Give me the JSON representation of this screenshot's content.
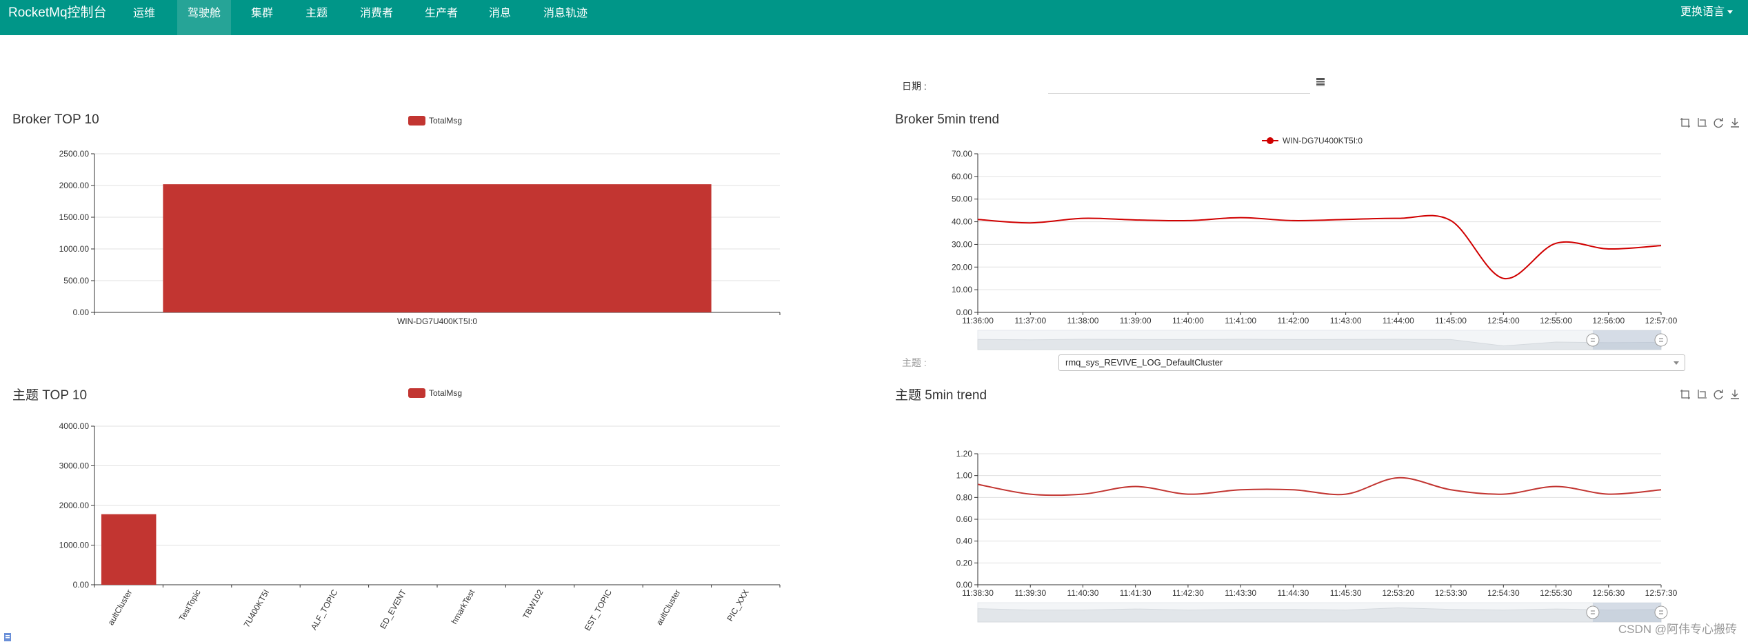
{
  "navbar": {
    "brand": "RocketMq控制台",
    "items": [
      {
        "label": "运维",
        "active": false
      },
      {
        "label": "驾驶舱",
        "active": true
      },
      {
        "label": "集群",
        "active": false
      },
      {
        "label": "主题",
        "active": false
      },
      {
        "label": "消费者",
        "active": false
      },
      {
        "label": "生产者",
        "active": false
      },
      {
        "label": "消息",
        "active": false
      },
      {
        "label": "消息轨迹",
        "active": false
      }
    ],
    "language": "更换语言"
  },
  "colors": {
    "navbar": "#009688",
    "bar": "#c23531",
    "line": "#d00000",
    "lineTopic": "#c23531"
  },
  "date_filter": {
    "label": "日期 :",
    "value": "",
    "icon": "calendar-icon"
  },
  "topic_filter": {
    "label": "主题 :",
    "selected": "rmq_sys_REVIVE_LOG_DefaultCluster"
  },
  "panels": {
    "broker_top": {
      "title": "Broker TOP 10"
    },
    "broker_trend": {
      "title": "Broker 5min trend"
    },
    "topic_top": {
      "title": "主题 TOP 10"
    },
    "topic_trend": {
      "title": "主题 5min trend"
    }
  },
  "toolbox_icons": [
    "zoom-icon",
    "zoom-reset-icon",
    "restore-icon",
    "download-icon"
  ],
  "watermark": "CSDN @阿伟专心搬砖",
  "chart_data": [
    {
      "id": "broker_top",
      "type": "bar",
      "legend": [
        "TotalMsg"
      ],
      "categories": [
        "WIN-DG7U400KT5I:0"
      ],
      "series": [
        {
          "name": "TotalMsg",
          "values": [
            2020
          ]
        }
      ],
      "ylim": [
        0,
        2500
      ],
      "yticks": [
        "0.00",
        "500.00",
        "1000.00",
        "1500.00",
        "2000.00",
        "2500.00"
      ],
      "grid": true,
      "legend_position": "top-center"
    },
    {
      "id": "broker_trend",
      "type": "line",
      "legend": [
        "WIN-DG7U400KT5I:0"
      ],
      "x": [
        "11:36:00",
        "11:37:00",
        "11:38:00",
        "11:39:00",
        "11:40:00",
        "11:41:00",
        "11:42:00",
        "11:43:00",
        "11:44:00",
        "11:45:00",
        "12:54:00",
        "12:55:00",
        "12:56:00",
        "12:57:00"
      ],
      "series": [
        {
          "name": "WIN-DG7U400KT5I:0",
          "values": [
            41,
            39.5,
            41.5,
            40.8,
            40.5,
            41.8,
            40.5,
            41,
            41.5,
            40.5,
            15,
            30.5,
            28,
            29.5
          ]
        }
      ],
      "ylim": [
        0,
        70
      ],
      "yticks": [
        "0.00",
        "10.00",
        "20.00",
        "30.00",
        "40.00",
        "50.00",
        "60.00",
        "70.00"
      ],
      "grid": true,
      "legend_position": "top-center",
      "datazoom": {
        "start_percent": 90,
        "end_percent": 100
      }
    },
    {
      "id": "topic_top",
      "type": "bar",
      "legend": [
        "TotalMsg"
      ],
      "categories": [
        "aultCluster",
        "TestTopic",
        "7U400KT5I",
        "ALF_TOPIC",
        "ED_EVENT",
        "hmarkTest",
        "TBW102",
        "EST_TOPIC",
        "aultCluster",
        "PIC_XXX"
      ],
      "series": [
        {
          "name": "TotalMsg",
          "values": [
            1780,
            0,
            0,
            0,
            0,
            0,
            0,
            0,
            0,
            0
          ]
        }
      ],
      "ylim": [
        0,
        4000
      ],
      "yticks": [
        "0.00",
        "1000.00",
        "2000.00",
        "3000.00",
        "4000.00"
      ],
      "grid": true,
      "legend_position": "top-center"
    },
    {
      "id": "topic_trend",
      "type": "line",
      "legend": [],
      "x": [
        "11:38:30",
        "11:39:30",
        "11:40:30",
        "11:41:30",
        "11:42:30",
        "11:43:30",
        "11:44:30",
        "11:45:30",
        "12:53:20",
        "12:53:30",
        "12:54:30",
        "12:55:30",
        "12:56:30",
        "12:57:30"
      ],
      "series": [
        {
          "name": "",
          "values": [
            0.92,
            0.83,
            0.83,
            0.9,
            0.83,
            0.87,
            0.87,
            0.83,
            0.98,
            0.87,
            0.83,
            0.9,
            0.83,
            0.87
          ]
        }
      ],
      "ylim": [
        0,
        1.2
      ],
      "yticks": [
        "0.00",
        "0.20",
        "0.40",
        "0.60",
        "0.80",
        "1.00",
        "1.20"
      ],
      "grid": true,
      "datazoom": {
        "start_percent": 90,
        "end_percent": 100
      }
    }
  ]
}
